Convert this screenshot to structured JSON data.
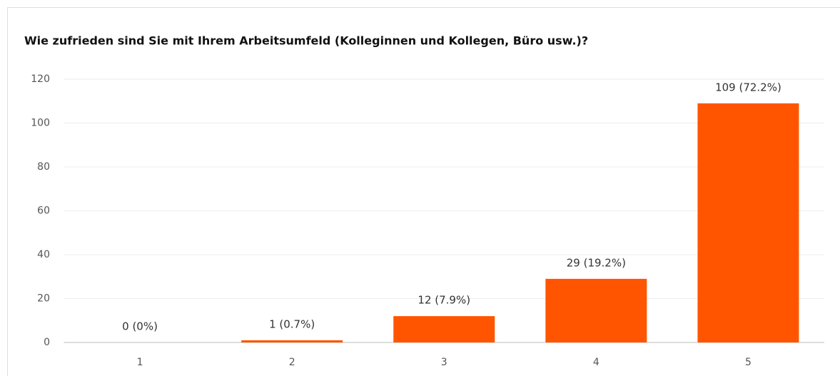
{
  "chart_data": {
    "type": "bar",
    "title": "Wie zufrieden sind Sie mit Ihrem Arbeitsumfeld (Kolleginnen und Kollegen, Büro usw.)?",
    "categories": [
      "1",
      "2",
      "3",
      "4",
      "5"
    ],
    "values": [
      0,
      1,
      12,
      29,
      109
    ],
    "value_labels": [
      "0 (0%)",
      "1 (0.7%)",
      "12 (7.9%)",
      "29 (19.2%)",
      "109 (72.2%)"
    ],
    "color": "#ff5500",
    "ylim": [
      0,
      120
    ],
    "yticks": [
      0,
      20,
      40,
      60,
      80,
      100,
      120
    ],
    "grid": true
  }
}
